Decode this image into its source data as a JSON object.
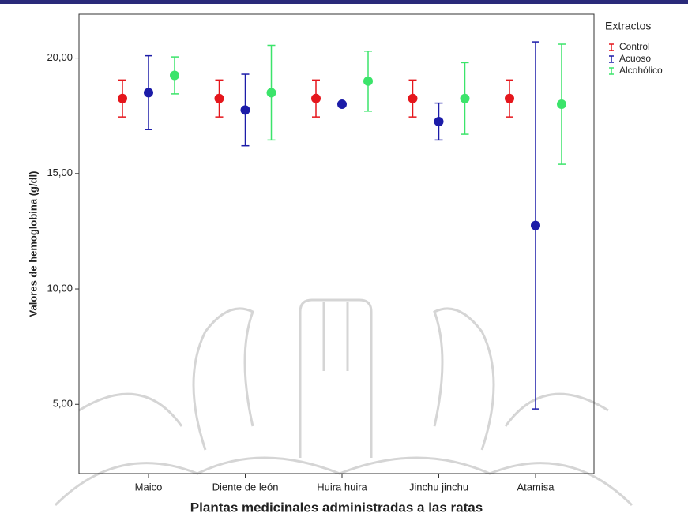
{
  "chart_data": {
    "type": "errorbar",
    "y_label": "Valores de hemoglobina (g/dl)",
    "x_label": "Plantas medicinales administradas a las ratas",
    "legend_title": "Extractos",
    "legend": "right",
    "categories": [
      "Maico",
      "Diente de león",
      "Huira huira",
      "Jinchu jinchu",
      "Atamisa"
    ],
    "series": [
      {
        "name": "Control",
        "color": "#e5161c",
        "values": [
          18.25,
          18.25,
          18.25,
          18.25,
          18.25
        ],
        "errors": [
          0.8,
          0.8,
          0.8,
          0.8,
          0.8
        ]
      },
      {
        "name": "Acuoso",
        "color": "#1c1ca8",
        "values": [
          18.5,
          17.75,
          18.0,
          17.25,
          12.75
        ],
        "errors": [
          1.6,
          1.55,
          0,
          0.8,
          7.95
        ]
      },
      {
        "name": "Alcohólico",
        "color": "#3be46a",
        "values": [
          19.25,
          18.5,
          19.0,
          18.25,
          18.0
        ],
        "errors": [
          0.8,
          2.05,
          1.3,
          1.55,
          2.6
        ]
      }
    ],
    "ylim": [
      2,
      21.9
    ],
    "yticks": [
      {
        "value": 5,
        "label": "5,00"
      },
      {
        "value": 10,
        "label": "10,00"
      },
      {
        "value": 15,
        "label": "15,00"
      },
      {
        "value": 20,
        "label": "20,00"
      }
    ]
  }
}
